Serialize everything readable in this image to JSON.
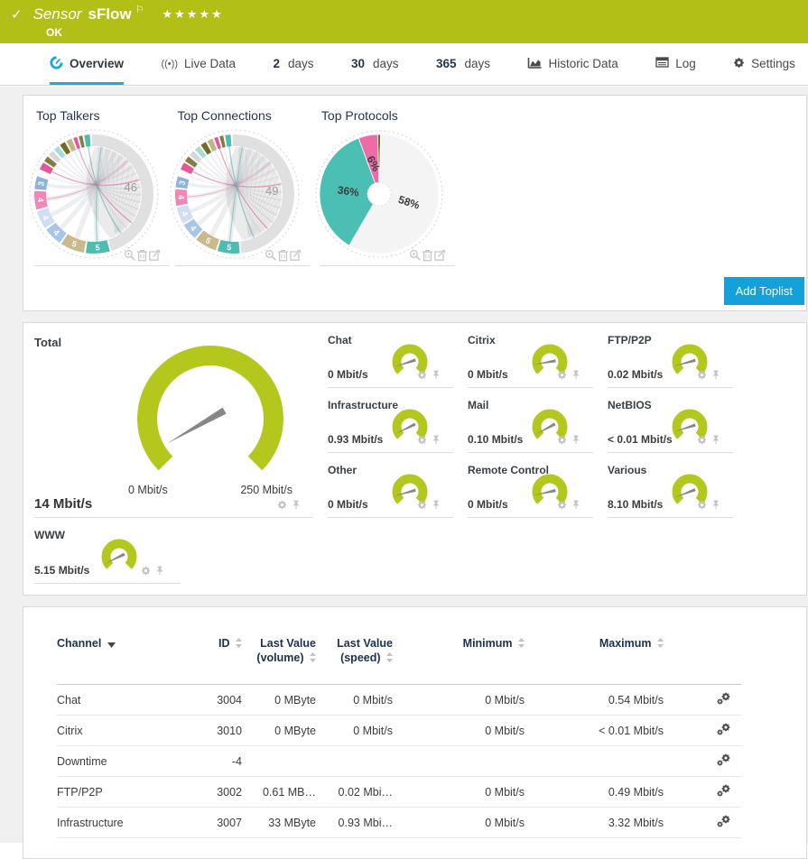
{
  "header": {
    "check": "✓",
    "title_prefix": "Sensor",
    "title": "sFlow",
    "flag": "⚐",
    "stars": "★★★★★",
    "status": "OK",
    "colors": {
      "bg": "#b1bf17",
      "accent_blue": "#14a0d8"
    }
  },
  "tabs": {
    "overview": "Overview",
    "live": "Live Data",
    "d2_num": "2",
    "d2_label": "days",
    "d30_num": "30",
    "d30_label": "days",
    "d365_num": "365",
    "d365_label": "days",
    "historic": "Historic Data",
    "log": "Log",
    "settings": "Settings"
  },
  "toplists": {
    "add_button": "Add Toplist"
  },
  "chart_data": [
    {
      "type": "chord",
      "title": "Top Talkers",
      "legend_note": "segment labels are percent shares",
      "segments": [
        {
          "label": "46",
          "value": 46,
          "color": "#e0e0e0",
          "big": true
        },
        {
          "label": "5",
          "value": 7,
          "color": "#4fbcb2"
        },
        {
          "label": "5",
          "value": 7,
          "color": "#c9ba8c"
        },
        {
          "label": "4",
          "value": 5.5,
          "color": "#a9c6e8"
        },
        {
          "label": "4",
          "value": 5.5,
          "color": "#cfdef2"
        },
        {
          "label": "4",
          "value": 5.5,
          "color": "#ef87b7"
        },
        {
          "label": "3",
          "value": 4,
          "color": "#8fb3dc"
        },
        {
          "value": 1.5,
          "color": "#ffffff"
        },
        {
          "value": 2.5,
          "color": "#e8559b"
        },
        {
          "value": 2,
          "color": "#8a7a3e"
        },
        {
          "value": 2,
          "color": "#d8d8d8"
        },
        {
          "value": 2,
          "color": "#a6dcd5"
        },
        {
          "value": 2,
          "color": "#736a25"
        },
        {
          "value": 2,
          "color": "#c2b484"
        },
        {
          "value": 1.5,
          "color": "#e8559b"
        },
        {
          "value": 1.5,
          "color": "#8a7a3e"
        },
        {
          "value": 2,
          "color": "#4fbcb2"
        }
      ]
    },
    {
      "type": "chord",
      "title": "Top Connections",
      "segments": [
        {
          "label": "49",
          "value": 49,
          "color": "#e0e0e0",
          "big": true
        },
        {
          "label": "5",
          "value": 6.5,
          "color": "#4fbcb2"
        },
        {
          "label": "5",
          "value": 6.5,
          "color": "#c9ba8c"
        },
        {
          "label": "4",
          "value": 5,
          "color": "#a9c6e8"
        },
        {
          "label": "4",
          "value": 5,
          "color": "#cfdef2"
        },
        {
          "label": "4",
          "value": 5,
          "color": "#ef87b7"
        },
        {
          "label": "3",
          "value": 3.5,
          "color": "#8fb3dc"
        },
        {
          "value": 1.5,
          "color": "#ffffff"
        },
        {
          "value": 2.5,
          "color": "#e8559b"
        },
        {
          "value": 2,
          "color": "#8a7a3e"
        },
        {
          "value": 2,
          "color": "#d8d8d8"
        },
        {
          "value": 2,
          "color": "#a6dcd5"
        },
        {
          "value": 2,
          "color": "#736a25"
        },
        {
          "value": 2,
          "color": "#c2b484"
        },
        {
          "value": 1.5,
          "color": "#e8559b"
        },
        {
          "value": 1.5,
          "color": "#8a7a3e"
        },
        {
          "value": 2,
          "color": "#4fbcb2"
        }
      ]
    },
    {
      "type": "pie",
      "title": "Top Protocols",
      "slices": [
        {
          "label": "",
          "value": 0.8,
          "color": "#7a6a2a",
          "rotate": 0
        },
        {
          "label": "58%",
          "value": 58,
          "color": "#f4f4f4",
          "rotate": 18
        },
        {
          "label": "36%",
          "value": 36,
          "color": "#4cbfb5",
          "rotate": 8
        },
        {
          "label": "6%",
          "value": 5.2,
          "color": "#ef6ba6",
          "rotate": 62
        }
      ]
    },
    {
      "type": "gauge",
      "title": "Total",
      "value": 14,
      "min": 0,
      "max": 250,
      "unit": "Mbit/s",
      "value_label": "14 Mbit/s",
      "min_label": "0 Mbit/s",
      "max_label": "250 Mbit/s",
      "needle_fraction": 0.056
    },
    {
      "type": "gauge",
      "title": "Chat",
      "value_label": "0 Mbit/s",
      "needle_fraction": 0.1
    },
    {
      "type": "gauge",
      "title": "Citrix",
      "value_label": "0 Mbit/s",
      "needle_fraction": 0.13
    },
    {
      "type": "gauge",
      "title": "FTP/P2P",
      "value_label": "0.02 Mbit/s",
      "needle_fraction": 0.11
    },
    {
      "type": "gauge",
      "title": "Infrastructure",
      "value_label": "0.93 Mbit/s",
      "needle_fraction": 0.07
    },
    {
      "type": "gauge",
      "title": "Mail",
      "value_label": "0.10 Mbit/s",
      "needle_fraction": 0.06
    },
    {
      "type": "gauge",
      "title": "NetBIOS",
      "value_label": "< 0.01 Mbit/s",
      "needle_fraction": 0.1
    },
    {
      "type": "gauge",
      "title": "Other",
      "value_label": "0 Mbit/s",
      "needle_fraction": 0.11
    },
    {
      "type": "gauge",
      "title": "Remote Control",
      "value_label": "0 Mbit/s",
      "needle_fraction": 0.12
    },
    {
      "type": "gauge",
      "title": "Various",
      "value_label": "8.10 Mbit/s",
      "needle_fraction": 0.09
    },
    {
      "type": "gauge",
      "title": "WWW",
      "value_label": "5.15 Mbit/s",
      "needle_fraction": 0.07
    }
  ],
  "table": {
    "headers": {
      "channel": "Channel",
      "id": "ID",
      "lv_volume": "Last Value (volume)",
      "lv_speed": "Last Value (speed)",
      "min": "Minimum",
      "max": "Maximum"
    },
    "rows": [
      {
        "channel": "Chat",
        "id": "3004",
        "lv_volume": "0 MByte",
        "lv_speed": "0 Mbit/s",
        "min": "0 Mbit/s",
        "max": "0.54 Mbit/s"
      },
      {
        "channel": "Citrix",
        "id": "3010",
        "lv_volume": "0 MByte",
        "lv_speed": "0 Mbit/s",
        "min": "0 Mbit/s",
        "max": "< 0.01 Mbit/s"
      },
      {
        "channel": "Downtime",
        "id": "-4",
        "lv_volume": "",
        "lv_speed": "",
        "min": "",
        "max": ""
      },
      {
        "channel": "FTP/P2P",
        "id": "3002",
        "lv_volume": "0.61 MB…",
        "lv_speed": "0.02 Mbi…",
        "min": "0 Mbit/s",
        "max": "0.49 Mbit/s"
      },
      {
        "channel": "Infrastructure",
        "id": "3007",
        "lv_volume": "33 MByte",
        "lv_speed": "0.93 Mbi…",
        "min": "0 Mbit/s",
        "max": "3.32 Mbit/s"
      }
    ]
  }
}
